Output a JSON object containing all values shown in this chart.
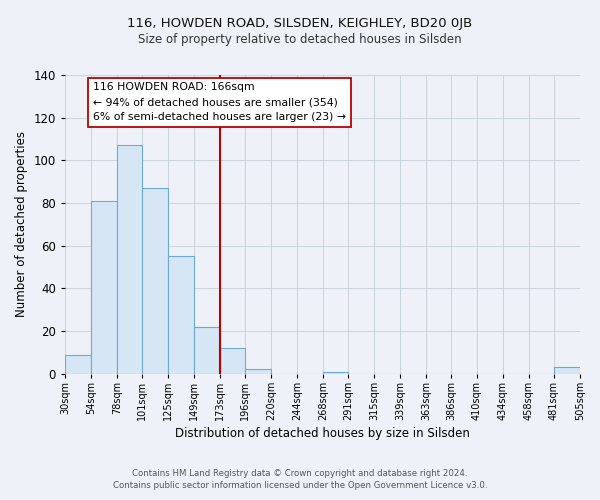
{
  "title": "116, HOWDEN ROAD, SILSDEN, KEIGHLEY, BD20 0JB",
  "subtitle": "Size of property relative to detached houses in Silsden",
  "xlabel": "Distribution of detached houses by size in Silsden",
  "ylabel": "Number of detached properties",
  "bar_color": "#d6e6f5",
  "bar_edge_color": "#6aaad4",
  "background_color": "#eef2f8",
  "plot_bg_color": "#eef2f8",
  "bin_edges": [
    30,
    54,
    78,
    101,
    125,
    149,
    173,
    196,
    220,
    244,
    268,
    291,
    315,
    339,
    363,
    386,
    410,
    434,
    458,
    481,
    505
  ],
  "bin_labels": [
    "30sqm",
    "54sqm",
    "78sqm",
    "101sqm",
    "125sqm",
    "149sqm",
    "173sqm",
    "196sqm",
    "220sqm",
    "244sqm",
    "268sqm",
    "291sqm",
    "315sqm",
    "339sqm",
    "363sqm",
    "386sqm",
    "410sqm",
    "434sqm",
    "458sqm",
    "481sqm",
    "505sqm"
  ],
  "counts": [
    9,
    81,
    107,
    87,
    55,
    22,
    12,
    2,
    0,
    0,
    1,
    0,
    0,
    0,
    0,
    0,
    0,
    0,
    0,
    3
  ],
  "ylim": [
    0,
    140
  ],
  "yticks": [
    0,
    20,
    40,
    60,
    80,
    100,
    120,
    140
  ],
  "vline_x": 173,
  "vline_color": "#bb0000",
  "annotation_title": "116 HOWDEN ROAD: 166sqm",
  "annotation_line1": "← 94% of detached houses are smaller (354)",
  "annotation_line2": "6% of semi-detached houses are larger (23) →",
  "footer1": "Contains HM Land Registry data © Crown copyright and database right 2024.",
  "footer2": "Contains public sector information licensed under the Open Government Licence v3.0."
}
